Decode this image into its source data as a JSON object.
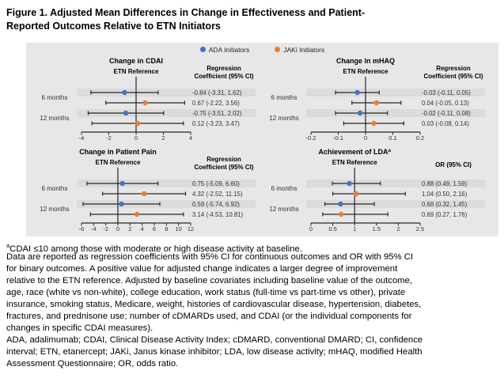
{
  "figure_title_lines": [
    "Figure 1. Adjusted Mean Differences in Change in Effectiveness and Patient-",
    "Reported Outcomes Relative to ETN Initiators"
  ],
  "legend": {
    "ada": "ADA Initiators",
    "jaki": "JAKi Initiators"
  },
  "colors": {
    "ada": "#4472C4",
    "jaki": "#ED7D31",
    "chart_bg": "#E7E7E7",
    "row_band": "#DBDBDB",
    "line": "#262626",
    "text": "#333333"
  },
  "chart_data": [
    {
      "type": "forest",
      "title": "Change in CDAI",
      "title_sup": "",
      "ref_label": "ETN Reference",
      "value_header": [
        "Regression",
        "Coefficient (95% CI)"
      ],
      "xlim": [
        -4,
        4
      ],
      "ticks": [
        -4,
        -2,
        0,
        2,
        4
      ],
      "tick_labels": [
        "-4",
        "-2",
        "0",
        "2",
        "4"
      ],
      "ref_value": 0,
      "group_labels": [
        "6 months",
        "12 months"
      ],
      "rows": [
        {
          "series": "ADA",
          "group": "6 months",
          "est": -0.84,
          "lo": -3.31,
          "hi": 1.62,
          "label": "-0.84 (-3.31, 1.62)"
        },
        {
          "series": "JAKi",
          "group": "6 months",
          "est": 0.67,
          "lo": -2.22,
          "hi": 3.56,
          "label": "0.67 (-2.22, 3.56)"
        },
        {
          "series": "ADA",
          "group": "12 months",
          "est": -0.75,
          "lo": -3.51,
          "hi": 2.02,
          "label": "-0.75 (-3.51, 2.02)"
        },
        {
          "series": "JAKi",
          "group": "12 months",
          "est": 0.12,
          "lo": -3.23,
          "hi": 3.47,
          "label": "0.12 (-3.23, 3.47)"
        }
      ]
    },
    {
      "type": "forest",
      "title": "Change in mHAQ",
      "title_sup": "",
      "ref_label": "ETN Reference",
      "value_header": [
        "Regression",
        "Coefficient (95% CI)"
      ],
      "xlim": [
        -0.2,
        0.2
      ],
      "ticks": [
        -0.2,
        -0.1,
        0,
        0.1,
        0.2
      ],
      "tick_labels": [
        "-0.2",
        "-0.1",
        "0",
        "0.1",
        "0.2"
      ],
      "ref_value": 0,
      "group_labels": [
        "6 months",
        "12 months"
      ],
      "rows": [
        {
          "series": "ADA",
          "group": "6 months",
          "est": -0.03,
          "lo": -0.11,
          "hi": 0.05,
          "label": "-0.03 (-0.11, 0.05)"
        },
        {
          "series": "JAKi",
          "group": "6 months",
          "est": 0.04,
          "lo": -0.05,
          "hi": 0.13,
          "label": "0.04 (-0.05, 0.13)"
        },
        {
          "series": "ADA",
          "group": "12 months",
          "est": -0.02,
          "lo": -0.11,
          "hi": 0.08,
          "label": "-0.02 (-0.11, 0.08)"
        },
        {
          "series": "JAKi",
          "group": "12 months",
          "est": 0.03,
          "lo": -0.08,
          "hi": 0.14,
          "label": "0.03 (-0.08, 0.14)"
        }
      ]
    },
    {
      "type": "forest",
      "title": "Change in Patient Pain",
      "title_sup": "",
      "ref_label": "ETN Reference",
      "value_header": [
        "Regression",
        "Coefficient (95% CI)"
      ],
      "xlim": [
        -6,
        12
      ],
      "ticks": [
        -6,
        -4,
        -2,
        0,
        2,
        4,
        6,
        8,
        10,
        12
      ],
      "tick_labels": [
        "-6",
        "-4",
        "-2",
        "0",
        "2",
        "4",
        "6",
        "8",
        "10",
        "12"
      ],
      "ref_value": 0,
      "group_labels": [
        "6 months",
        "12 months"
      ],
      "rows": [
        {
          "series": "ADA",
          "group": "6 months",
          "est": 0.75,
          "lo": -5.09,
          "hi": 6.6,
          "label": "0.75 (-5.09, 6.60)"
        },
        {
          "series": "JAKi",
          "group": "6 months",
          "est": 4.32,
          "lo": -2.52,
          "hi": 11.15,
          "label": "4.32 (-2.52, 11.15)"
        },
        {
          "series": "ADA",
          "group": "12 months",
          "est": 0.59,
          "lo": -5.74,
          "hi": 6.92,
          "label": "0.59 (-5.74, 6.92)"
        },
        {
          "series": "JAKi",
          "group": "12 months",
          "est": 3.14,
          "lo": -4.53,
          "hi": 10.81,
          "label": "3.14 (-4.53, 10.81)"
        }
      ]
    },
    {
      "type": "forest",
      "title": "Achievement of LDA",
      "title_sup": "a",
      "ref_label": "ETN Reference",
      "value_header": [
        "OR (95% CI)"
      ],
      "xlim": [
        0,
        2.5
      ],
      "ticks": [
        0,
        0.5,
        1,
        1.5,
        2,
        2.5
      ],
      "tick_labels": [
        "0",
        "0.5",
        "1",
        "1.5",
        "2",
        "2.5"
      ],
      "ref_value": 1,
      "group_labels": [
        "6 months",
        "12 months"
      ],
      "rows": [
        {
          "series": "ADA",
          "group": "6 months",
          "est": 0.88,
          "lo": 0.49,
          "hi": 1.59,
          "label": "0.88 (0.49, 1.59)"
        },
        {
          "series": "JAKi",
          "group": "6 months",
          "est": 1.04,
          "lo": 0.5,
          "hi": 2.16,
          "label": "1.04 (0.50, 2.16)"
        },
        {
          "series": "ADA",
          "group": "12 months",
          "est": 0.68,
          "lo": 0.32,
          "hi": 1.45,
          "label": "0.68 (0.32, 1.45)"
        },
        {
          "series": "JAKi",
          "group": "12 months",
          "est": 0.69,
          "lo": 0.27,
          "hi": 1.76,
          "label": "0.69 (0.27, 1.76)"
        }
      ]
    }
  ],
  "footnotes": {
    "sup_marker": "a",
    "line_a": "CDAI ≤10 among those with moderate or high disease activity at baseline.",
    "methods_lines": [
      "Data are reported as regression coefficients with 95% CI for continuous outcomes and OR with 95% CI",
      "for binary outcomes. A positive value for adjusted change indicates a larger degree of improvement",
      "relative to the ETN reference. Adjusted by baseline covariates including baseline value of the outcome,",
      "age, race (white vs non-white), college education, work status (full-time vs part-time vs other), private",
      "insurance, smoking status, Medicare, weight, histories of cardiovascular disease, hypertension, diabetes,",
      "fractures, and prednisone use; number of cDMARDs used, and CDAI (or the individual components for",
      "changes in specific CDAI measures)."
    ],
    "abbrev_lines": [
      "ADA, adalimumab; CDAI, Clinical Disease Activity Index; cDMARD, conventional DMARD; CI, confidence",
      "interval; ETN, etanercept; JAKi, Janus kinase inhibitor; LDA, low disease activity; mHAQ, modified Health",
      "Assessment Questionnaire; OR, odds ratio."
    ]
  }
}
